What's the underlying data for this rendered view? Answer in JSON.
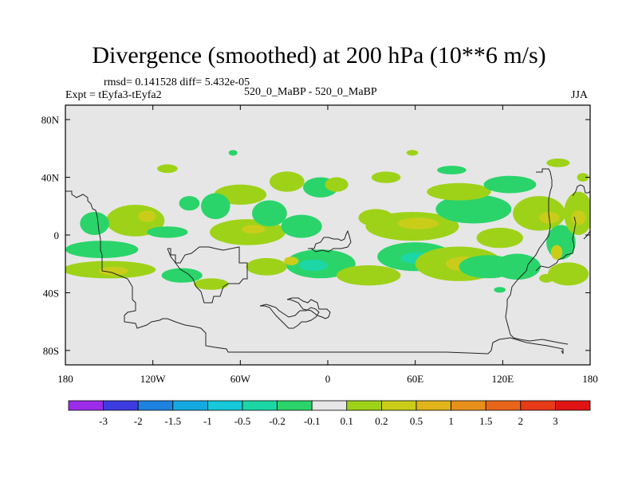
{
  "chart_data": {
    "type": "heatmap",
    "title": "Divergence (smoothed) at 200 hPa (10**6 m/s)",
    "stats": "rmsd= 0.141528 diff= 5.432e-05",
    "expt": "Expt = tEyfa3-tEyfa2",
    "center_label": "520_0_MaBP - 520_0_MaBP",
    "season": "JJA",
    "x_ticks": [
      "180",
      "120W",
      "60W",
      "0",
      "60E",
      "120E",
      "180"
    ],
    "y_ticks": [
      "80N",
      "40N",
      "0",
      "40S",
      "80S"
    ],
    "xlim": [
      -180,
      180
    ],
    "ylim": [
      -90,
      90
    ],
    "colorbar": {
      "labels": [
        "-3",
        "-2",
        "-1.5",
        "-1",
        "-0.5",
        "-0.2",
        "-0.1",
        "0.1",
        "0.2",
        "0.5",
        "1",
        "1.5",
        "2",
        "3"
      ],
      "colors": [
        "#9b2cea",
        "#3d3ce0",
        "#1e82e0",
        "#14a9e0",
        "#16c8d8",
        "#1dd6a6",
        "#2ad46a",
        "#e6e6e6",
        "#9ed218",
        "#c9cd1a",
        "#e0b41a",
        "#e6901a",
        "#e8661a",
        "#e63a18",
        "#e01414"
      ]
    },
    "blobs": [
      {
        "lon": -132,
        "lat": 10,
        "rx": 20,
        "ry": 11,
        "v": 0.3
      },
      {
        "lon": -124,
        "lat": 13,
        "rx": 6,
        "ry": 4,
        "v": 0.7
      },
      {
        "lon": -160,
        "lat": 8,
        "rx": 10,
        "ry": 8,
        "v": -0.3
      },
      {
        "lon": -110,
        "lat": 2,
        "rx": 14,
        "ry": 4,
        "v": -0.3
      },
      {
        "lon": -155,
        "lat": -10,
        "rx": 25,
        "ry": 6,
        "v": -0.3
      },
      {
        "lon": -150,
        "lat": -24,
        "rx": 32,
        "ry": 6,
        "v": 0.3
      },
      {
        "lon": -147,
        "lat": -25,
        "rx": 10,
        "ry": 3,
        "v": 0.7
      },
      {
        "lon": -100,
        "lat": -28,
        "rx": 14,
        "ry": 5,
        "v": -0.3
      },
      {
        "lon": -55,
        "lat": 2,
        "rx": 26,
        "ry": 9,
        "v": 0.3
      },
      {
        "lon": -51,
        "lat": 4,
        "rx": 8,
        "ry": 3,
        "v": 0.7
      },
      {
        "lon": -60,
        "lat": 28,
        "rx": 18,
        "ry": 7,
        "v": 0.3
      },
      {
        "lon": -77,
        "lat": 20,
        "rx": 10,
        "ry": 9,
        "v": -0.3
      },
      {
        "lon": -95,
        "lat": 22,
        "rx": 7,
        "ry": 5,
        "v": -0.3
      },
      {
        "lon": -110,
        "lat": 46,
        "rx": 7,
        "ry": 3,
        "v": 0.3
      },
      {
        "lon": -28,
        "lat": 37,
        "rx": 12,
        "ry": 7,
        "v": 0.3
      },
      {
        "lon": -40,
        "lat": 15,
        "rx": 12,
        "ry": 9,
        "v": -0.3
      },
      {
        "lon": -5,
        "lat": 33,
        "rx": 12,
        "ry": 7,
        "v": -0.3
      },
      {
        "lon": 6,
        "lat": 35,
        "rx": 8,
        "ry": 5,
        "v": 0.3
      },
      {
        "lon": -18,
        "lat": 6,
        "rx": 14,
        "ry": 8,
        "v": -0.3
      },
      {
        "lon": -5,
        "lat": -20,
        "rx": 24,
        "ry": 10,
        "v": -0.3
      },
      {
        "lon": -10,
        "lat": -21,
        "rx": 10,
        "ry": 4,
        "v": -0.7
      },
      {
        "lon": -42,
        "lat": -22,
        "rx": 14,
        "ry": 6,
        "v": 0.3
      },
      {
        "lon": -80,
        "lat": -34,
        "rx": 12,
        "ry": 4,
        "v": 0.3
      },
      {
        "lon": 28,
        "lat": -28,
        "rx": 22,
        "ry": 7,
        "v": 0.3
      },
      {
        "lon": 33,
        "lat": 12,
        "rx": 12,
        "ry": 6,
        "v": 0.3
      },
      {
        "lon": 58,
        "lat": 6,
        "rx": 32,
        "ry": 10,
        "v": 0.3
      },
      {
        "lon": 62,
        "lat": 8,
        "rx": 14,
        "ry": 4,
        "v": 0.7
      },
      {
        "lon": 60,
        "lat": -15,
        "rx": 26,
        "ry": 10,
        "v": -0.3
      },
      {
        "lon": 62,
        "lat": -16,
        "rx": 12,
        "ry": 4,
        "v": -0.7
      },
      {
        "lon": 90,
        "lat": -20,
        "rx": 30,
        "ry": 12,
        "v": 0.3
      },
      {
        "lon": 93,
        "lat": -20,
        "rx": 12,
        "ry": 5,
        "v": 0.7
      },
      {
        "lon": 100,
        "lat": 18,
        "rx": 26,
        "ry": 10,
        "v": -0.3
      },
      {
        "lon": 90,
        "lat": 30,
        "rx": 22,
        "ry": 6,
        "v": 0.3
      },
      {
        "lon": 85,
        "lat": 45,
        "rx": 10,
        "ry": 3,
        "v": -0.3
      },
      {
        "lon": 118,
        "lat": -2,
        "rx": 16,
        "ry": 7,
        "v": 0.3
      },
      {
        "lon": 110,
        "lat": -22,
        "rx": 20,
        "ry": 8,
        "v": -0.3
      },
      {
        "lon": 130,
        "lat": -22,
        "rx": 16,
        "ry": 9,
        "v": -0.3
      },
      {
        "lon": 145,
        "lat": 15,
        "rx": 18,
        "ry": 12,
        "v": 0.3
      },
      {
        "lon": 152,
        "lat": 12,
        "rx": 7,
        "ry": 4,
        "v": 0.7
      },
      {
        "lon": 125,
        "lat": 35,
        "rx": 18,
        "ry": 6,
        "v": -0.3
      },
      {
        "lon": 160,
        "lat": -5,
        "rx": 10,
        "ry": 12,
        "v": -0.3
      },
      {
        "lon": 157,
        "lat": -12,
        "rx": 4,
        "ry": 5,
        "v": 0.7
      },
      {
        "lon": 172,
        "lat": 15,
        "rx": 10,
        "ry": 15,
        "v": 0.3
      },
      {
        "lon": 172,
        "lat": 12,
        "rx": 5,
        "ry": 5,
        "v": 0.7
      },
      {
        "lon": 165,
        "lat": -27,
        "rx": 14,
        "ry": 8,
        "v": 0.3
      },
      {
        "lon": 158,
        "lat": 50,
        "rx": 8,
        "ry": 3,
        "v": 0.3
      },
      {
        "lon": 175,
        "lat": 40,
        "rx": 4,
        "ry": 3,
        "v": 0.3
      },
      {
        "lon": 40,
        "lat": 40,
        "rx": 10,
        "ry": 4,
        "v": 0.3
      },
      {
        "lon": -25,
        "lat": -18,
        "rx": 5,
        "ry": 3,
        "v": 0.7
      },
      {
        "lon": -65,
        "lat": 57,
        "rx": 3,
        "ry": 2,
        "v": -0.3
      },
      {
        "lon": 58,
        "lat": 57,
        "rx": 4,
        "ry": 2,
        "v": 0.3
      },
      {
        "lon": 150,
        "lat": -30,
        "rx": 5,
        "ry": 3,
        "v": 0.3
      },
      {
        "lon": 118,
        "lat": -38,
        "rx": 4,
        "ry": 2,
        "v": -0.3
      }
    ]
  }
}
